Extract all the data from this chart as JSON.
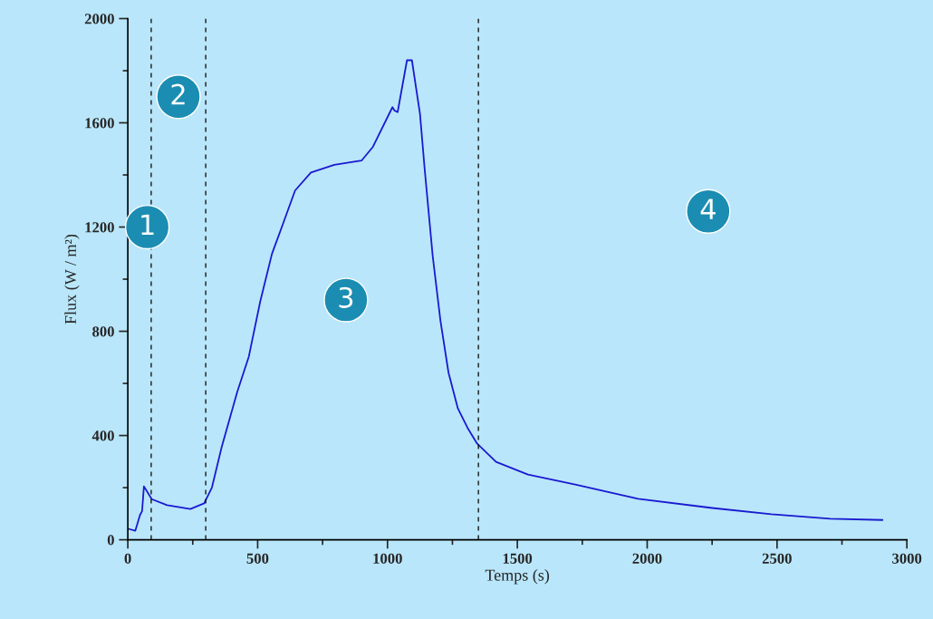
{
  "chart_data": {
    "type": "line",
    "xlabel": "Temps (s)",
    "ylabel": "Flux (W / m²)",
    "x": [
      2,
      29,
      47,
      55,
      62,
      92,
      151,
      241,
      294,
      324,
      361,
      421,
      466,
      510,
      555,
      600,
      644,
      705,
      795,
      900,
      944,
      1019,
      1027,
      1039,
      1075,
      1094,
      1125,
      1143,
      1174,
      1204,
      1235,
      1271,
      1308,
      1345,
      1418,
      1541,
      1723,
      1965,
      2250,
      2478,
      2705,
      2906
    ],
    "series": [
      {
        "color": "#1a1ad0",
        "values": [
          42,
          35,
          95,
          110,
          205,
          156,
          133,
          118,
          140,
          201,
          354,
          566,
          703,
          915,
          1097,
          1219,
          1340,
          1409,
          1439,
          1455,
          1508,
          1660,
          1647,
          1641,
          1840,
          1840,
          1635,
          1424,
          1089,
          840,
          641,
          504,
          430,
          369,
          299,
          250,
          212,
          157,
          122,
          98,
          81,
          76
        ]
      }
    ],
    "xlim": [
      0,
      3000
    ],
    "ylim": [
      0,
      2000
    ],
    "xticks": [
      0,
      {
        "value": 250,
        "label": null
      },
      500,
      {
        "value": 750,
        "label": null
      },
      1000,
      {
        "value": 1250,
        "label": null
      },
      1500,
      {
        "value": 1750,
        "label": null
      },
      2000,
      {
        "value": 2250,
        "label": null
      },
      2500,
      {
        "value": 2750,
        "label": null
      },
      3000
    ],
    "yticks": [
      0,
      {
        "value": 200,
        "label": null
      },
      400,
      {
        "value": 600,
        "label": null
      },
      800,
      {
        "value": 1000,
        "label": null
      },
      1200,
      {
        "value": 1400,
        "label": null
      },
      1600,
      {
        "value": 1800,
        "label": null
      },
      2000
    ],
    "ref_lines": [
      {
        "axis": "x",
        "value": 90,
        "color": "#000000",
        "line_style": "dashed"
      },
      {
        "axis": "x",
        "value": 300,
        "color": "#000000",
        "line_style": "dashed"
      },
      {
        "axis": "x",
        "value": 1350,
        "color": "#000000",
        "line_style": "dashed"
      }
    ],
    "annotations": [
      "1",
      "2",
      "3",
      "4"
    ],
    "grid": false,
    "legend": false
  }
}
